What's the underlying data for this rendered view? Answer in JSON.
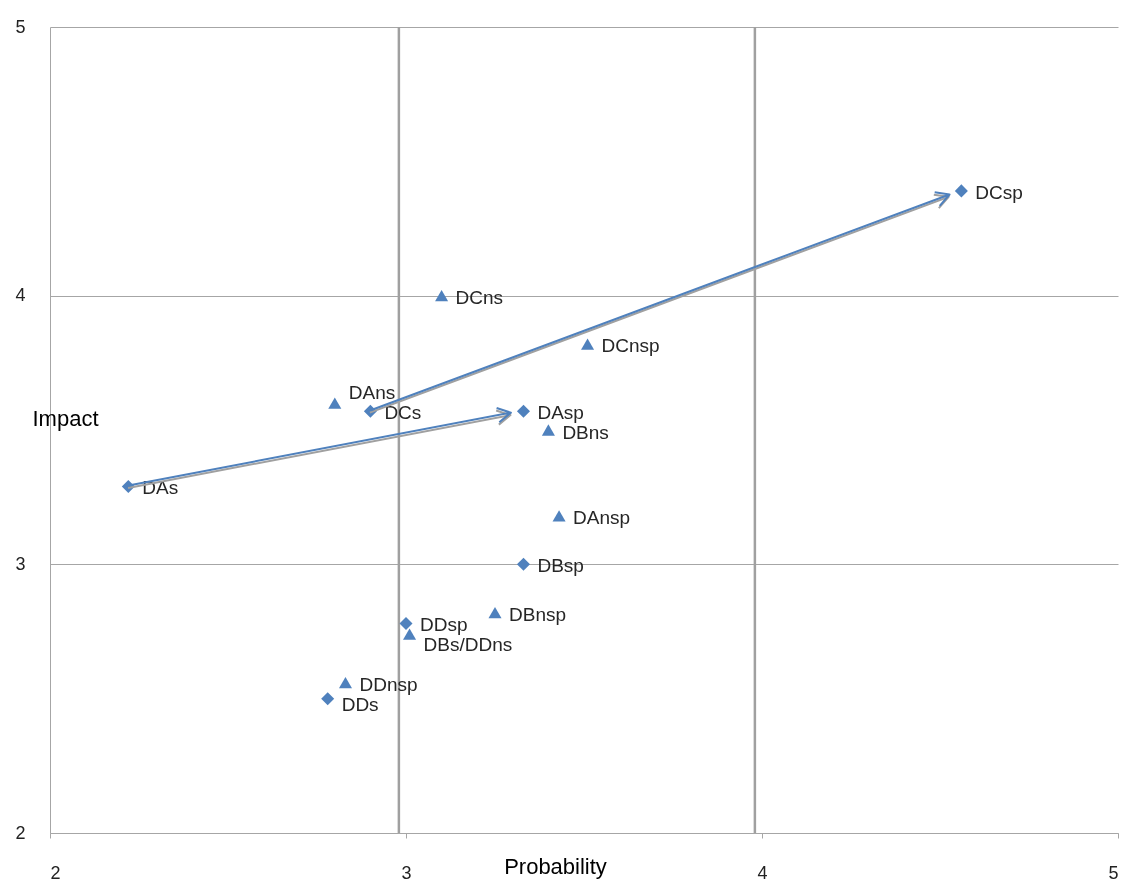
{
  "chart_data": {
    "type": "scatter",
    "xlabel": "Probability",
    "ylabel": "Impact",
    "xlim": [
      2,
      5
    ],
    "ylim": [
      2,
      5
    ],
    "xticks": [
      2,
      3,
      4,
      5
    ],
    "yticks": [
      2,
      3,
      4,
      5
    ],
    "grid": "y",
    "ref_lines": [
      {
        "axis": "x",
        "value": 2.98,
        "color": "#a0a0a0"
      },
      {
        "axis": "x",
        "value": 3.98,
        "color": "#a0a0a0"
      }
    ],
    "series": [
      {
        "marker": "diamond",
        "color": "#4f81bd",
        "x": [
          2.22,
          2.9,
          3.33,
          4.56,
          3.33,
          3.0,
          2.78
        ],
        "values": [
          3.29,
          3.57,
          3.57,
          4.39,
          3.0,
          2.78,
          2.5
        ]
      },
      {
        "marker": "triangle",
        "color": "#4f81bd",
        "x": [
          3.1,
          3.51,
          2.8,
          3.4,
          3.43,
          3.25,
          3.01,
          2.83
        ],
        "values": [
          4.0,
          3.82,
          3.6,
          3.5,
          3.18,
          2.82,
          2.74,
          2.56
        ]
      }
    ],
    "annotations": [
      {
        "text": "DCsp",
        "x": 4.56,
        "y": 4.39
      },
      {
        "text": "DCns",
        "x": 3.1,
        "y": 4.0
      },
      {
        "text": "DCnsp",
        "x": 3.51,
        "y": 3.82
      },
      {
        "text": "DCs",
        "x": 2.9,
        "y": 3.57
      },
      {
        "text": "DAns",
        "x": 2.8,
        "y": 3.6
      },
      {
        "text": "DAsp",
        "x": 3.33,
        "y": 3.57
      },
      {
        "text": "DBns",
        "x": 3.4,
        "y": 3.5
      },
      {
        "text": "DAs",
        "x": 2.22,
        "y": 3.29
      },
      {
        "text": "DAnsp",
        "x": 3.43,
        "y": 3.18
      },
      {
        "text": "DBsp",
        "x": 3.33,
        "y": 3.0
      },
      {
        "text": "DBnsp",
        "x": 3.25,
        "y": 2.82
      },
      {
        "text": "DDsp",
        "x": 3.0,
        "y": 2.78
      },
      {
        "text": "DBs/DDns",
        "x": 3.01,
        "y": 2.74
      },
      {
        "text": "DDnsp",
        "x": 2.83,
        "y": 2.56
      },
      {
        "text": "DDs",
        "x": 2.78,
        "y": 2.5
      }
    ]
  }
}
